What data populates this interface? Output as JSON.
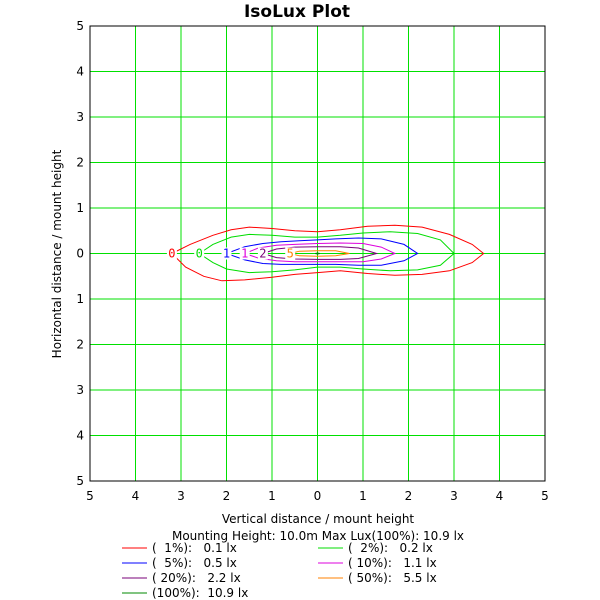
{
  "chart_data": {
    "type": "contour",
    "title": "IsoLux Plot",
    "xlabel": "Vertical distance / mount height",
    "ylabel": "Horizontal distance / mount height",
    "xlim": [
      -5,
      5
    ],
    "ylim": [
      -5,
      5
    ],
    "tick_values": [
      -5,
      -4,
      -3,
      -2,
      -1,
      0,
      1,
      2,
      3,
      4,
      5
    ],
    "tick_labels": [
      "5",
      "4",
      "3",
      "2",
      "1",
      "0",
      "1",
      "2",
      "3",
      "4",
      "5"
    ],
    "grid": true,
    "grid_color": "#00e000",
    "info": "Mounting Height: 10.0m   Max Lux(100%): 10.9 lx",
    "series": [
      {
        "legend": "(  1%):   0.1 lx",
        "label": "0",
        "color": "#ff0000",
        "xy": [
          [
            -3.2,
            0.0
          ],
          [
            -2.8,
            0.2
          ],
          [
            -2.3,
            0.4
          ],
          [
            -1.9,
            0.52
          ],
          [
            -1.5,
            0.58
          ],
          [
            -1.0,
            0.55
          ],
          [
            -0.5,
            0.5
          ],
          [
            0.0,
            0.48
          ],
          [
            0.5,
            0.52
          ],
          [
            1.1,
            0.6
          ],
          [
            1.7,
            0.62
          ],
          [
            2.3,
            0.58
          ],
          [
            2.9,
            0.42
          ],
          [
            3.4,
            0.2
          ],
          [
            3.65,
            0.0
          ],
          [
            3.4,
            -0.2
          ],
          [
            2.9,
            -0.38
          ],
          [
            2.3,
            -0.46
          ],
          [
            1.7,
            -0.48
          ],
          [
            1.1,
            -0.44
          ],
          [
            0.5,
            -0.38
          ],
          [
            0.0,
            -0.42
          ],
          [
            -0.5,
            -0.46
          ],
          [
            -1.0,
            -0.52
          ],
          [
            -1.6,
            -0.58
          ],
          [
            -2.1,
            -0.6
          ],
          [
            -2.5,
            -0.5
          ],
          [
            -2.9,
            -0.3
          ],
          [
            -3.2,
            0.0
          ]
        ]
      },
      {
        "legend": "(  2%):   0.2 lx",
        "label": "0",
        "color": "#00dd00",
        "xy": [
          [
            -2.6,
            0.0
          ],
          [
            -2.3,
            0.2
          ],
          [
            -1.9,
            0.36
          ],
          [
            -1.5,
            0.42
          ],
          [
            -1.0,
            0.4
          ],
          [
            -0.5,
            0.36
          ],
          [
            0.0,
            0.36
          ],
          [
            0.5,
            0.4
          ],
          [
            1.0,
            0.45
          ],
          [
            1.6,
            0.48
          ],
          [
            2.2,
            0.44
          ],
          [
            2.7,
            0.3
          ],
          [
            3.0,
            0.0
          ],
          [
            2.7,
            -0.26
          ],
          [
            2.2,
            -0.36
          ],
          [
            1.6,
            -0.38
          ],
          [
            1.0,
            -0.34
          ],
          [
            0.5,
            -0.3
          ],
          [
            0.0,
            -0.3
          ],
          [
            -0.5,
            -0.36
          ],
          [
            -1.0,
            -0.4
          ],
          [
            -1.5,
            -0.42
          ],
          [
            -2.0,
            -0.34
          ],
          [
            -2.3,
            -0.2
          ],
          [
            -2.6,
            0.0
          ]
        ]
      },
      {
        "legend": "(  5%):   0.5 lx",
        "label": "1",
        "color": "#0000ff",
        "xy": [
          [
            -2.0,
            0.0
          ],
          [
            -1.6,
            0.15
          ],
          [
            -1.2,
            0.22
          ],
          [
            -0.8,
            0.26
          ],
          [
            -0.4,
            0.28
          ],
          [
            0.0,
            0.3
          ],
          [
            0.4,
            0.32
          ],
          [
            0.9,
            0.34
          ],
          [
            1.4,
            0.32
          ],
          [
            1.9,
            0.2
          ],
          [
            2.2,
            0.0
          ],
          [
            1.9,
            -0.16
          ],
          [
            1.4,
            -0.26
          ],
          [
            0.9,
            -0.26
          ],
          [
            0.4,
            -0.24
          ],
          [
            0.0,
            -0.24
          ],
          [
            -0.4,
            -0.24
          ],
          [
            -0.8,
            -0.24
          ],
          [
            -1.2,
            -0.22
          ],
          [
            -1.6,
            -0.14
          ],
          [
            -2.0,
            0.0
          ]
        ]
      },
      {
        "legend": "( 10%):   1.1 lx",
        "label": "1",
        "color": "#dd00dd",
        "xy": [
          [
            -1.6,
            0.0
          ],
          [
            -1.3,
            0.12
          ],
          [
            -0.9,
            0.18
          ],
          [
            -0.5,
            0.2
          ],
          [
            0.0,
            0.22
          ],
          [
            0.5,
            0.23
          ],
          [
            1.0,
            0.22
          ],
          [
            1.4,
            0.14
          ],
          [
            1.7,
            0.0
          ],
          [
            1.4,
            -0.12
          ],
          [
            1.0,
            -0.18
          ],
          [
            0.5,
            -0.18
          ],
          [
            0.0,
            -0.18
          ],
          [
            -0.5,
            -0.18
          ],
          [
            -0.9,
            -0.16
          ],
          [
            -1.3,
            -0.1
          ],
          [
            -1.6,
            0.0
          ]
        ]
      },
      {
        "legend": "( 20%):   2.2 lx",
        "label": "2",
        "color": "#7a007a",
        "xy": [
          [
            -1.2,
            0.0
          ],
          [
            -0.9,
            0.1
          ],
          [
            -0.5,
            0.14
          ],
          [
            0.0,
            0.15
          ],
          [
            0.5,
            0.15
          ],
          [
            0.9,
            0.12
          ],
          [
            1.3,
            0.0
          ],
          [
            0.9,
            -0.11
          ],
          [
            0.5,
            -0.13
          ],
          [
            0.0,
            -0.13
          ],
          [
            -0.5,
            -0.12
          ],
          [
            -0.9,
            -0.09
          ],
          [
            -1.2,
            0.0
          ]
        ]
      },
      {
        "legend": "( 50%):   5.5 lx",
        "label": "5",
        "color": "#ff8000",
        "xy": [
          [
            -0.6,
            0.0
          ],
          [
            -0.4,
            0.05
          ],
          [
            0.0,
            0.06
          ],
          [
            0.4,
            0.06
          ],
          [
            0.7,
            0.0
          ],
          [
            0.4,
            -0.05
          ],
          [
            0.0,
            -0.06
          ],
          [
            -0.4,
            -0.05
          ],
          [
            -0.6,
            0.0
          ]
        ]
      },
      {
        "legend": "(100%):  10.9 lx",
        "label": "",
        "color": "#008800",
        "xy": [
          [
            -0.05,
            0.0
          ],
          [
            0.0,
            0.01
          ],
          [
            0.05,
            0.0
          ],
          [
            0.0,
            -0.01
          ],
          [
            -0.05,
            0.0
          ]
        ]
      }
    ]
  }
}
